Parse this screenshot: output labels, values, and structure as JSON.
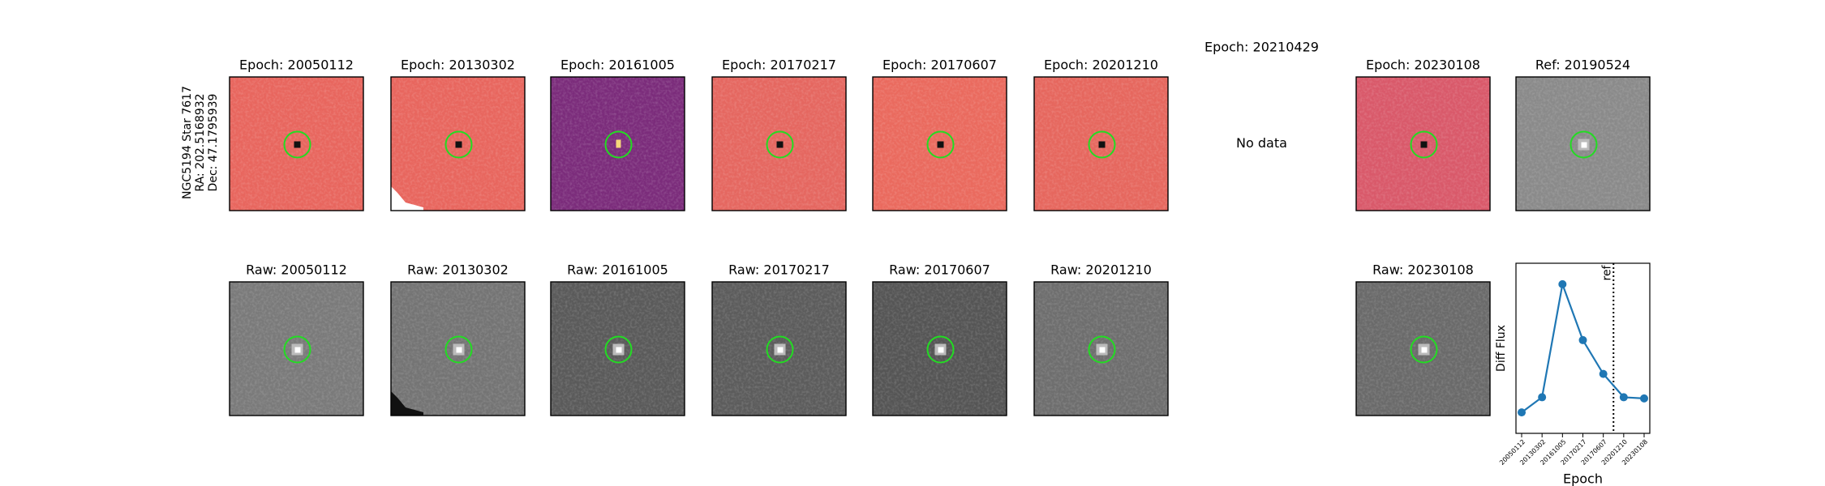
{
  "header": {
    "label_lines": [
      "NGC5194 Star 7617",
      "RA: 202.5168932",
      "Dec: 47.1795939"
    ]
  },
  "panels": {
    "diff": [
      {
        "title": "Epoch: 20050112",
        "color": "#e8665e"
      },
      {
        "title": "Epoch: 20130302",
        "color": "#e8665e"
      },
      {
        "title": "Epoch: 20161005",
        "color": "#7b2c7b"
      },
      {
        "title": "Epoch: 20170217",
        "color": "#e56760"
      },
      {
        "title": "Epoch: 20170607",
        "color": "#ea6a5e"
      },
      {
        "title": "Epoch: 20201210",
        "color": "#e6675e"
      },
      {
        "title": "Epoch: 20210429",
        "note": "No data"
      },
      {
        "title": "Epoch: 20230108",
        "color": "#d9596a"
      },
      {
        "title": "Ref: 20190524",
        "color": "#8a8a8a"
      }
    ],
    "raw": [
      {
        "title": "Raw: 20050112",
        "color": "#7a7a7a"
      },
      {
        "title": "Raw: 20130302",
        "color": "#747474"
      },
      {
        "title": "Raw: 20161005",
        "color": "#5a5a5a"
      },
      {
        "title": "Raw: 20170217",
        "color": "#5c5c5c"
      },
      {
        "title": "Raw: 20170607",
        "color": "#555555"
      },
      {
        "title": "Raw: 20201210",
        "color": "#6e6e6e"
      },
      null,
      {
        "title": "Raw: 20230108",
        "color": "#6a6a6a"
      }
    ]
  },
  "chart_data": {
    "type": "line",
    "xlabel": "Epoch",
    "ylabel": "Diff Flux",
    "categories": [
      "20050112",
      "20130302",
      "20161005",
      "20170217",
      "20170607",
      "20201210",
      "20230108"
    ],
    "values": [
      18,
      31,
      128,
      80,
      51,
      31,
      30
    ],
    "color": "#1f77b4",
    "ylim": [
      0,
      146
    ],
    "annotation": {
      "text": "ref",
      "x": 4.5
    }
  }
}
